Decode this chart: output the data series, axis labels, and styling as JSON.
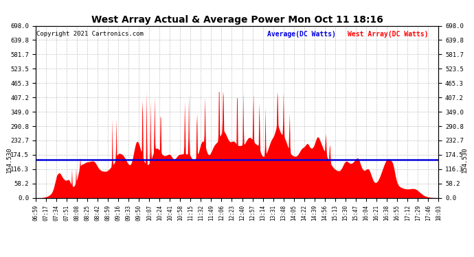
{
  "title": "West Array Actual & Average Power Mon Oct 11 18:16",
  "copyright": "Copyright 2021 Cartronics.com",
  "legend_avg": "Average(DC Watts)",
  "legend_west": "West Array(DC Watts)",
  "avg_value": 154.53,
  "ymax": 698.0,
  "ytick_values": [
    0.0,
    58.2,
    116.3,
    174.5,
    232.7,
    290.8,
    349.0,
    407.2,
    465.3,
    523.5,
    581.7,
    639.8,
    698.0
  ],
  "background_color": "#ffffff",
  "fill_color": "#ff0000",
  "line_color": "#ff0000",
  "avg_line_color": "#0000dd",
  "grid_color": "#bbbbbb",
  "title_color": "#000000",
  "copyright_color": "#000000",
  "legend_avg_color": "#0000dd",
  "legend_west_color": "#ff0000",
  "x_labels": [
    "06:59",
    "07:17",
    "07:34",
    "07:51",
    "08:08",
    "08:25",
    "08:42",
    "08:59",
    "09:16",
    "09:33",
    "09:50",
    "10:07",
    "10:24",
    "10:41",
    "10:58",
    "11:15",
    "11:32",
    "11:49",
    "12:06",
    "12:23",
    "12:40",
    "12:57",
    "13:14",
    "13:31",
    "13:48",
    "14:05",
    "14:22",
    "14:39",
    "14:56",
    "15:13",
    "15:30",
    "15:47",
    "16:04",
    "16:21",
    "16:38",
    "16:55",
    "17:12",
    "17:29",
    "17:46",
    "18:03"
  ]
}
